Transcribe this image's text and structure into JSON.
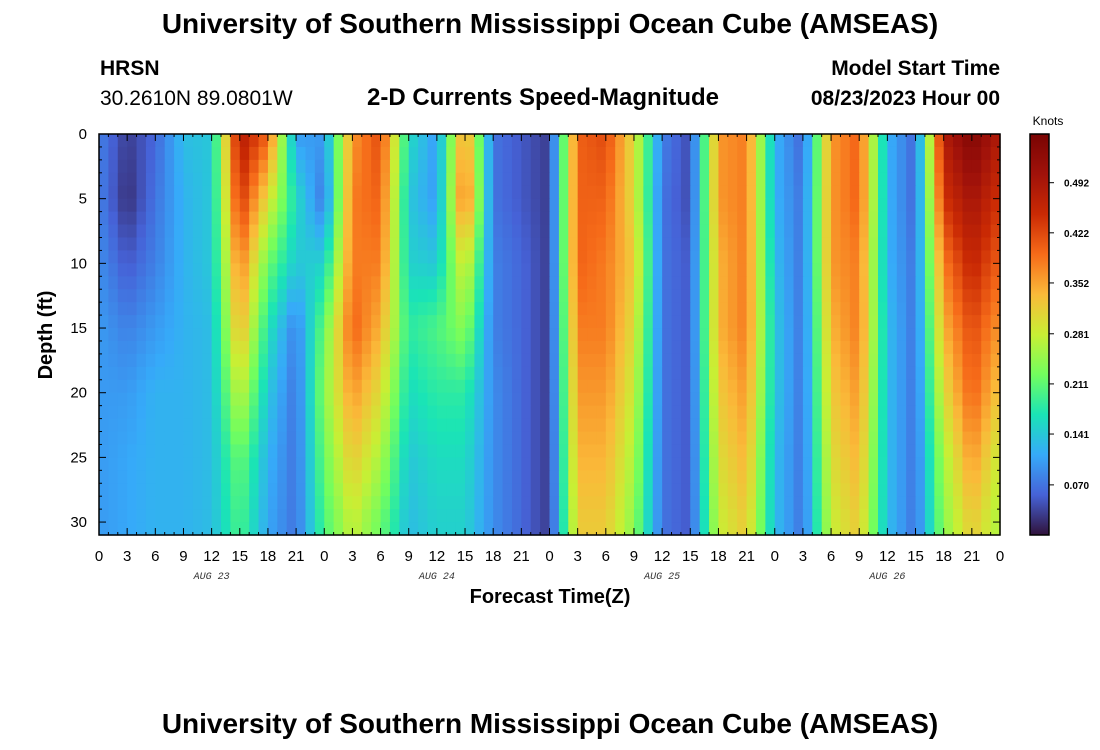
{
  "header": {
    "main_title": "University of Southern Mississippi Ocean Cube (AMSEAS)",
    "station": "HRSN",
    "coordinates": "30.2610N  89.0801W",
    "plot_title": "2-D Currents Speed-Magnitude",
    "start_label": "Model Start Time",
    "start_value": "08/23/2023 Hour 00"
  },
  "footer": {
    "main_title": "University of Southern Mississippi Ocean Cube (AMSEAS)"
  },
  "colors": {
    "background": "#ffffff",
    "axis": "#000000"
  },
  "chart_data": {
    "type": "heatmap",
    "title": "2-D Currents Speed-Magnitude",
    "xlabel": "Forecast Time(Z)",
    "ylabel": "Depth (ft)",
    "xlim": [
      0,
      96
    ],
    "ylim": [
      31,
      0
    ],
    "x_tick_values": [
      0,
      3,
      6,
      9,
      12,
      15,
      18,
      21,
      24,
      27,
      30,
      33,
      36,
      39,
      42,
      45,
      48,
      51,
      54,
      57,
      60,
      63,
      66,
      69,
      72,
      75,
      78,
      81,
      84,
      87,
      90,
      93,
      96
    ],
    "x_tick_labels": [
      "0",
      "3",
      "6",
      "9",
      "12",
      "15",
      "18",
      "21",
      "0",
      "3",
      "6",
      "9",
      "12",
      "15",
      "18",
      "21",
      "0",
      "3",
      "6",
      "9",
      "12",
      "15",
      "18",
      "21",
      "0",
      "3",
      "6",
      "9",
      "12",
      "15",
      "18",
      "21",
      "0"
    ],
    "day_labels": [
      {
        "label": "AUG 23",
        "hour": 12
      },
      {
        "label": "AUG 24",
        "hour": 36
      },
      {
        "label": "AUG 25",
        "hour": 60
      },
      {
        "label": "AUG 26",
        "hour": 84
      }
    ],
    "y_ticks": [
      0,
      5,
      10,
      15,
      20,
      25,
      30
    ],
    "y_tick_labels": [
      "0",
      "5",
      "10",
      "15",
      "20",
      "25",
      "30"
    ],
    "colorbar": {
      "unit": "Knots",
      "min": 0.0,
      "max": 0.56,
      "tick_values": [
        0.07,
        0.141,
        0.211,
        0.281,
        0.352,
        0.422,
        0.492
      ],
      "tick_labels": [
        "0.070",
        "0.141",
        "0.211",
        "0.281",
        "0.352",
        "0.422",
        "0.492"
      ]
    },
    "time_hours": [
      0,
      3,
      6,
      9,
      12,
      15,
      18,
      21,
      24,
      27,
      30,
      33,
      36,
      39,
      42,
      45,
      48,
      51,
      54,
      57,
      60,
      63,
      66,
      69,
      72,
      75,
      78,
      81,
      84,
      87,
      90,
      93,
      96
    ],
    "depth_ft": [
      0,
      5,
      10,
      15,
      20,
      25,
      30
    ],
    "speed_knots": [
      [
        0.08,
        0.03,
        0.06,
        0.13,
        0.14,
        0.48,
        0.4,
        0.1,
        0.1,
        0.36,
        0.42,
        0.16,
        0.1,
        0.37,
        0.07,
        0.05,
        0.03,
        0.4,
        0.42,
        0.3,
        0.08,
        0.04,
        0.36,
        0.38,
        0.12,
        0.06,
        0.36,
        0.4,
        0.12,
        0.06,
        0.48,
        0.55,
        0.48
      ],
      [
        0.08,
        0.02,
        0.07,
        0.12,
        0.14,
        0.44,
        0.3,
        0.16,
        0.07,
        0.38,
        0.4,
        0.14,
        0.1,
        0.4,
        0.07,
        0.05,
        0.03,
        0.4,
        0.4,
        0.3,
        0.07,
        0.04,
        0.36,
        0.38,
        0.12,
        0.07,
        0.36,
        0.4,
        0.12,
        0.06,
        0.44,
        0.5,
        0.44
      ],
      [
        0.09,
        0.05,
        0.08,
        0.12,
        0.14,
        0.38,
        0.22,
        0.14,
        0.15,
        0.38,
        0.38,
        0.15,
        0.14,
        0.3,
        0.08,
        0.06,
        0.03,
        0.4,
        0.38,
        0.32,
        0.07,
        0.05,
        0.34,
        0.38,
        0.13,
        0.07,
        0.36,
        0.38,
        0.12,
        0.07,
        0.38,
        0.46,
        0.4
      ],
      [
        0.1,
        0.08,
        0.1,
        0.12,
        0.13,
        0.34,
        0.17,
        0.08,
        0.22,
        0.4,
        0.34,
        0.18,
        0.2,
        0.24,
        0.08,
        0.06,
        0.03,
        0.38,
        0.38,
        0.3,
        0.07,
        0.05,
        0.34,
        0.38,
        0.14,
        0.07,
        0.34,
        0.38,
        0.13,
        0.07,
        0.34,
        0.42,
        0.36
      ],
      [
        0.1,
        0.1,
        0.12,
        0.12,
        0.13,
        0.28,
        0.14,
        0.07,
        0.24,
        0.36,
        0.3,
        0.16,
        0.18,
        0.18,
        0.09,
        0.06,
        0.03,
        0.36,
        0.36,
        0.28,
        0.07,
        0.05,
        0.32,
        0.36,
        0.14,
        0.07,
        0.32,
        0.36,
        0.13,
        0.07,
        0.3,
        0.4,
        0.32
      ],
      [
        0.1,
        0.11,
        0.12,
        0.12,
        0.13,
        0.22,
        0.12,
        0.07,
        0.22,
        0.32,
        0.26,
        0.14,
        0.16,
        0.16,
        0.09,
        0.06,
        0.03,
        0.34,
        0.34,
        0.26,
        0.07,
        0.05,
        0.3,
        0.34,
        0.13,
        0.07,
        0.3,
        0.34,
        0.13,
        0.07,
        0.26,
        0.36,
        0.28
      ],
      [
        0.1,
        0.11,
        0.12,
        0.12,
        0.13,
        0.2,
        0.11,
        0.07,
        0.2,
        0.28,
        0.22,
        0.13,
        0.15,
        0.15,
        0.09,
        0.06,
        0.03,
        0.32,
        0.32,
        0.24,
        0.07,
        0.05,
        0.28,
        0.32,
        0.13,
        0.07,
        0.28,
        0.32,
        0.13,
        0.07,
        0.24,
        0.32,
        0.26
      ]
    ]
  }
}
